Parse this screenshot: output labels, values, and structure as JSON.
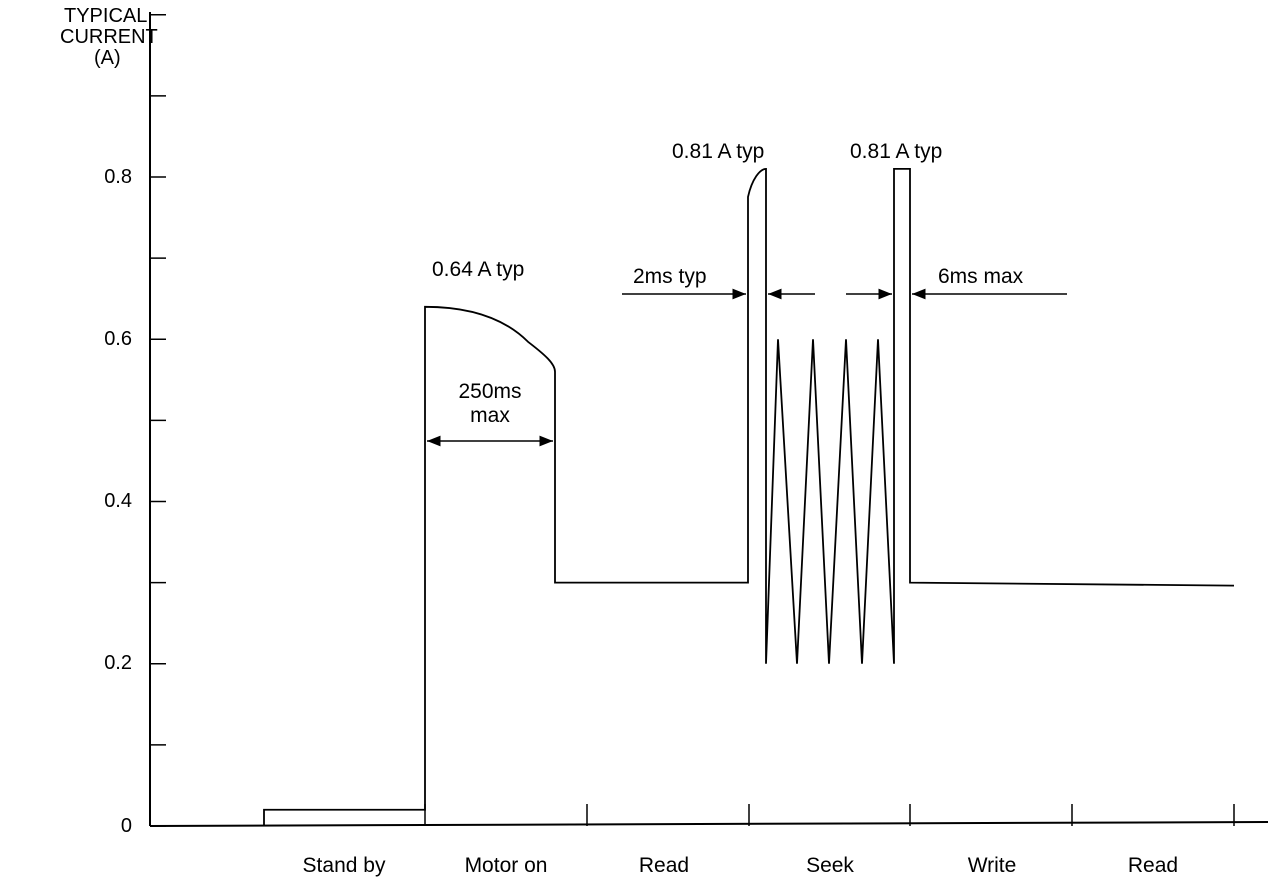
{
  "chart_data": {
    "type": "line",
    "title": "",
    "ylabel_lines": [
      "TYPICAL",
      "CURRENT",
      "(A)"
    ],
    "xlabel": "",
    "ylim": [
      0,
      1.0
    ],
    "yticks": [
      0,
      0.1,
      0.2,
      0.3,
      0.4,
      0.5,
      0.6,
      0.7,
      0.8,
      0.9,
      1.0
    ],
    "ytick_labels": [
      {
        "value": 0,
        "label": "0"
      },
      {
        "value": 0.2,
        "label": "0.2"
      },
      {
        "value": 0.4,
        "label": "0.4"
      },
      {
        "value": 0.6,
        "label": "0.6"
      },
      {
        "value": 0.8,
        "label": "0.8"
      }
    ],
    "phases": [
      "Stand by",
      "Motor on",
      "Read",
      "Seek",
      "Write",
      "Read"
    ],
    "grid": false,
    "series": [
      {
        "values_by_phase": {
          "Stand by": 0.02,
          "Motor on": {
            "start": 0.64,
            "end": 0.56,
            "duration_ms_max": 250
          },
          "Read": 0.3,
          "Seek": {
            "peak": 0.81,
            "oscillation_high": 0.6,
            "oscillation_low": 0.2
          },
          "Write": 0.3,
          "Read_2": 0.3
        }
      }
    ],
    "annotations": {
      "motor_peak": "0.64 A typ",
      "motor_duration": [
        "250ms",
        "max"
      ],
      "seek_peak_1": "0.81 A typ",
      "seek_peak_2": "0.81 A typ",
      "seek_pulse": "2ms typ",
      "settle_pulse": "6ms max"
    }
  }
}
